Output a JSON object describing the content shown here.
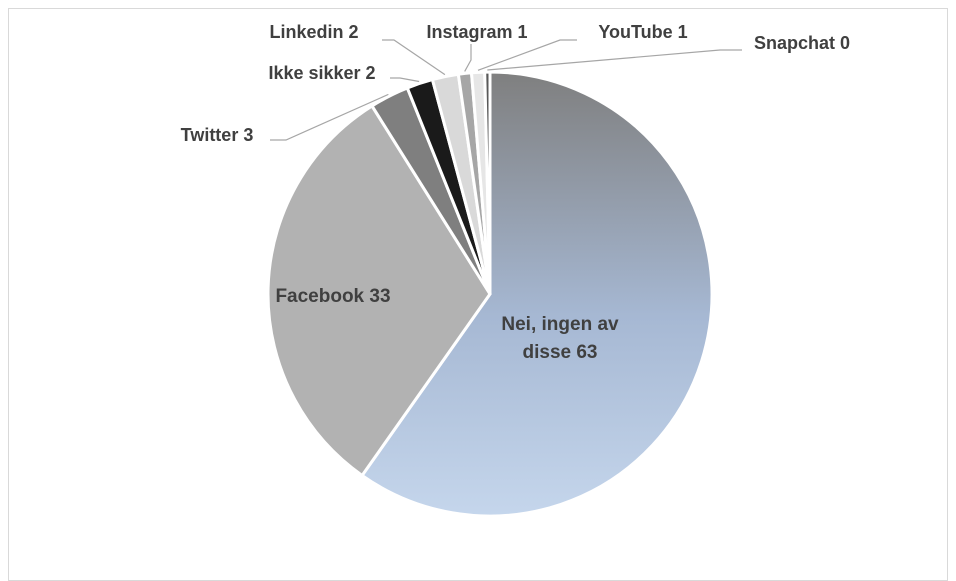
{
  "chart_data": {
    "type": "pie",
    "slices": [
      {
        "label": "Nei, ingen av disse",
        "value": 63,
        "text": "Nei, ingen av disse 63",
        "line1": "Nei, ingen av",
        "line2": "disse 63",
        "fill": "gradient"
      },
      {
        "label": "Facebook",
        "value": 33,
        "text": "Facebook 33",
        "fill": "#b2b2b2"
      },
      {
        "label": "Twitter",
        "value": 3,
        "text": "Twitter 3",
        "fill": "#7f7f7f"
      },
      {
        "label": "Ikke sikker",
        "value": 2,
        "text": "Ikke sikker 2",
        "fill": "#1a1a1a"
      },
      {
        "label": "Linkedin",
        "value": 2,
        "text": "Linkedin 2",
        "fill": "#d9d9d9"
      },
      {
        "label": "Instagram",
        "value": 1,
        "text": "Instagram 1",
        "fill": "#a6a6a6"
      },
      {
        "label": "YouTube",
        "value": 1,
        "text": "YouTube 1",
        "fill": "#e6e6e6"
      },
      {
        "label": "Snapchat",
        "value": 0.4,
        "text": "Snapchat 0",
        "fill": "#595959"
      }
    ],
    "gradient": {
      "top": "#7f7f7f",
      "middle": "#a6b8d3",
      "bottom": "#c5d6ec"
    },
    "start_angle_deg": 0,
    "direction": "clockwise",
    "legend": "none"
  }
}
